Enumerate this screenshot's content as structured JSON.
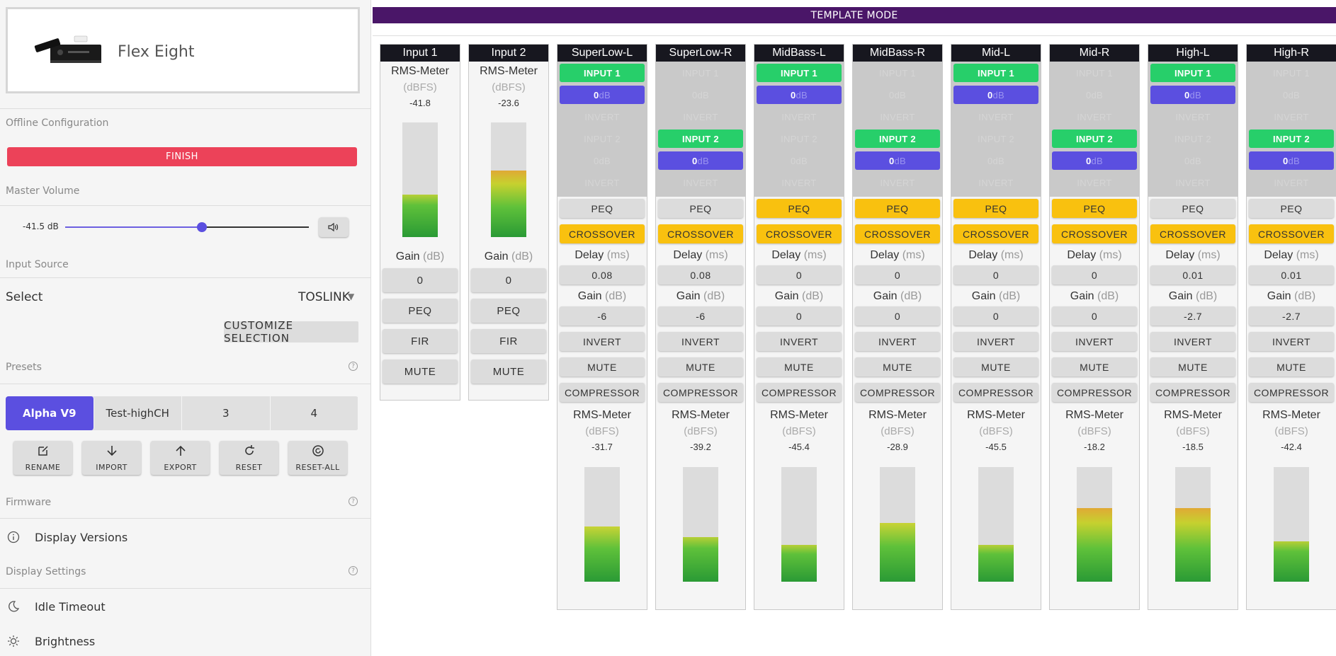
{
  "sidebar": {
    "device_name": "Flex Eight",
    "sections": {
      "offline": "Offline Configuration",
      "master": "Master Volume",
      "input_source": "Input Source",
      "presets": "Presets",
      "firmware": "Firmware",
      "display": "Display Settings"
    },
    "finish_label": "FINISH",
    "volume": {
      "label": "-41.5 dB",
      "level_fraction": 0.56
    },
    "select_label": "Select",
    "select_value": "TOSLINK",
    "customize_label": "CUSTOMIZE SELECTION",
    "presets": [
      "Alpha V9",
      "Test-highCH",
      "3",
      "4"
    ],
    "active_preset": 0,
    "actions": [
      {
        "label": "RENAME",
        "icon": "edit-icon"
      },
      {
        "label": "IMPORT",
        "icon": "download-icon"
      },
      {
        "label": "EXPORT",
        "icon": "upload-icon"
      },
      {
        "label": "RESET",
        "icon": "reset-icon"
      },
      {
        "label": "RESET-ALL",
        "icon": "reset-all-icon"
      }
    ],
    "display_versions": "Display Versions",
    "idle_timeout": "Idle Timeout",
    "brightness": "Brightness",
    "help_glyph": "?"
  },
  "main": {
    "template_mode": "TEMPLATE MODE",
    "labels": {
      "rms": "RMS-Meter",
      "dbfs": "(dBFS)",
      "gain": "Gain",
      "db_unit": "(dB)",
      "delay": "Delay",
      "ms_unit": "(ms)",
      "peq": "PEQ",
      "fir": "FIR",
      "mute": "MUTE",
      "crossover": "CROSSOVER",
      "invert": "INVERT",
      "compressor": "COMPRESSOR",
      "input1": "INPUT 1",
      "input2": "INPUT 2",
      "db": "dB",
      "zero": "0"
    },
    "inputs": [
      {
        "name": "Input 1",
        "rms": "-41.8",
        "gain": "0",
        "level": 0.37
      },
      {
        "name": "Input 2",
        "rms": "-23.6",
        "gain": "0",
        "level": 0.58
      }
    ],
    "outputs": [
      {
        "name": "SuperLow-L",
        "input1": true,
        "input2": false,
        "peq_active": false,
        "crossover_active": true,
        "delay": "0.08",
        "gain": "-6",
        "rms": "-31.7",
        "level": 0.48
      },
      {
        "name": "SuperLow-R",
        "input1": false,
        "input2": true,
        "peq_active": false,
        "crossover_active": true,
        "delay": "0.08",
        "gain": "-6",
        "rms": "-39.2",
        "level": 0.39
      },
      {
        "name": "MidBass-L",
        "input1": true,
        "input2": false,
        "peq_active": true,
        "crossover_active": true,
        "delay": "0",
        "gain": "0",
        "rms": "-45.4",
        "level": 0.32
      },
      {
        "name": "MidBass-R",
        "input1": false,
        "input2": true,
        "peq_active": true,
        "crossover_active": true,
        "delay": "0",
        "gain": "0",
        "rms": "-28.9",
        "level": 0.51
      },
      {
        "name": "Mid-L",
        "input1": true,
        "input2": false,
        "peq_active": true,
        "crossover_active": true,
        "delay": "0",
        "gain": "0",
        "rms": "-45.5",
        "level": 0.32
      },
      {
        "name": "Mid-R",
        "input1": false,
        "input2": true,
        "peq_active": true,
        "crossover_active": true,
        "delay": "0",
        "gain": "0",
        "rms": "-18.2",
        "level": 0.64
      },
      {
        "name": "High-L",
        "input1": true,
        "input2": false,
        "peq_active": false,
        "crossover_active": true,
        "delay": "0.01",
        "gain": "-2.7",
        "rms": "-18.5",
        "level": 0.64
      },
      {
        "name": "High-R",
        "input1": false,
        "input2": true,
        "peq_active": false,
        "crossover_active": true,
        "delay": "0.01",
        "gain": "-2.7",
        "rms": "-42.4",
        "level": 0.35
      }
    ]
  }
}
